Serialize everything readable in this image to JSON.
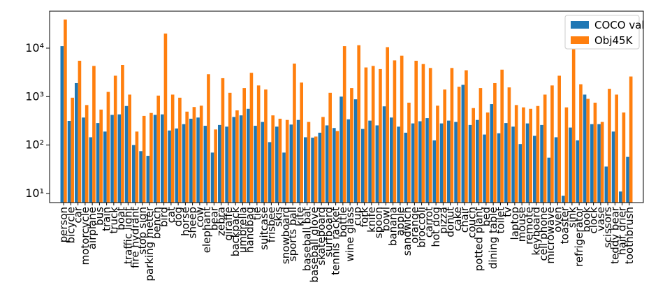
{
  "chart_data": {
    "type": "bar",
    "log_scale": true,
    "legend": "upper right",
    "categories": [
      "person",
      "bicycle",
      "car",
      "motorcycle",
      "airplane",
      "bus",
      "train",
      "truck",
      "boat",
      "traffic light",
      "fire hydrant",
      "stop sign",
      "parking meter",
      "bench",
      "bird",
      "cat",
      "dog",
      "horse",
      "sheep",
      "cow",
      "elephant",
      "bear",
      "zebra",
      "giraffe",
      "backpack",
      "umbrella",
      "handbag",
      "tie",
      "suitcase",
      "frisbee",
      "skis",
      "snowboard",
      "sports ball",
      "kite",
      "baseball bat",
      "baseball glove",
      "skateboard",
      "surfboard",
      "tennis racket",
      "bottle",
      "wine glass",
      "cup",
      "fork",
      "knife",
      "spoon",
      "bowl",
      "banana",
      "apple",
      "sandwich",
      "orange",
      "broccoli",
      "carrot",
      "hot dog",
      "pizza",
      "donut",
      "cake",
      "chair",
      "couch",
      "potted plant",
      "bed",
      "dining table",
      "toilet",
      "tv",
      "laptop",
      "mouse",
      "remote",
      "keyboard",
      "cell phone",
      "microwave",
      "oven",
      "toaster",
      "sink",
      "refrigerator",
      "book",
      "clock",
      "vase",
      "scissors",
      "teddy bear",
      "hair drier",
      "toothbrush"
    ],
    "series": [
      {
        "name": "COCO val",
        "color": "#1f77b4",
        "values": [
          11000,
          316,
          1900,
          370,
          145,
          285,
          190,
          420,
          430,
          640,
          100,
          75,
          60,
          420,
          430,
          200,
          220,
          270,
          350,
          370,
          250,
          70,
          260,
          240,
          380,
          410,
          560,
          250,
          300,
          115,
          240,
          70,
          265,
          330,
          145,
          142,
          180,
          255,
          225,
          1000,
          340,
          880,
          215,
          320,
          255,
          630,
          370,
          240,
          180,
          280,
          310,
          360,
          125,
          280,
          320,
          300,
          1750,
          260,
          330,
          165,
          700,
          175,
          285,
          240,
          105,
          280,
          155,
          260,
          55,
          145,
          9,
          230,
          125,
          1100,
          270,
          270,
          36,
          190,
          11,
          57
        ]
      },
      {
        "name": "Obj45K",
        "color": "#ff7f0e",
        "values": [
          39000,
          950,
          5500,
          670,
          4300,
          540,
          1250,
          2700,
          4500,
          1100,
          190,
          400,
          460,
          1050,
          20000,
          1100,
          950,
          490,
          610,
          650,
          2900,
          210,
          2400,
          1200,
          520,
          1500,
          3100,
          1700,
          1400,
          410,
          350,
          330,
          4800,
          1950,
          300,
          150,
          380,
          1200,
          195,
          11000,
          1500,
          11500,
          4000,
          4300,
          3700,
          10500,
          5600,
          7000,
          750,
          5500,
          4700,
          3900,
          650,
          1400,
          3900,
          1600,
          3500,
          580,
          1500,
          470,
          1900,
          3600,
          1550,
          670,
          600,
          560,
          640,
          1100,
          1700,
          2700,
          600,
          9800,
          1800,
          900,
          750,
          300,
          1450,
          1100,
          470,
          2600
        ]
      }
    ],
    "ylim": [
      6.5,
      58000
    ],
    "yticks": [
      {
        "value": 10,
        "label": "10¹"
      },
      {
        "value": 100,
        "label": "10²"
      },
      {
        "value": 1000,
        "label": "10³"
      },
      {
        "value": 10000,
        "label": "10⁴"
      }
    ]
  }
}
